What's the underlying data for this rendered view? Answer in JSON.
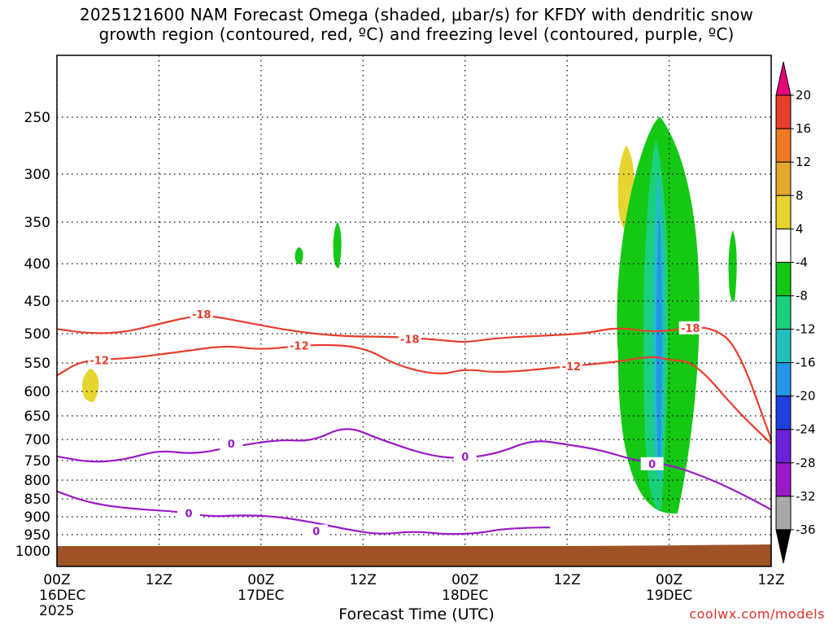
{
  "title_line1": "2025121600 NAM Forecast Omega (shaded, μbar/s) for KFDY with dendritic snow",
  "title_line2": "growth region (contoured, red, ºC) and freezing level (contoured, purple, ºC)",
  "credit": "coolwx.com/models",
  "chart_data": {
    "type": "heatmap",
    "title": "2025121600 NAM Forecast Omega (shaded, μbar/s) for KFDY with dendritic snow growth region (contoured, red, ºC) and freezing level (contoured, purple, ºC)",
    "xlabel": "Forecast Time (UTC)",
    "ylabel": "",
    "x_range_hours": [
      0,
      84
    ],
    "x_ticks": [
      {
        "h": 0,
        "label": "00Z",
        "sub": "16DEC",
        "sub2": "2025"
      },
      {
        "h": 12,
        "label": "12Z",
        "sub": "",
        "sub2": ""
      },
      {
        "h": 24,
        "label": "00Z",
        "sub": "17DEC",
        "sub2": ""
      },
      {
        "h": 36,
        "label": "12Z",
        "sub": "",
        "sub2": ""
      },
      {
        "h": 48,
        "label": "00Z",
        "sub": "18DEC",
        "sub2": ""
      },
      {
        "h": 60,
        "label": "12Z",
        "sub": "",
        "sub2": ""
      },
      {
        "h": 72,
        "label": "00Z",
        "sub": "19DEC",
        "sub2": ""
      },
      {
        "h": 84,
        "label": "12Z",
        "sub": "",
        "sub2": ""
      }
    ],
    "y_ticks": [
      250,
      300,
      350,
      400,
      450,
      500,
      550,
      600,
      650,
      700,
      750,
      800,
      850,
      900,
      950,
      1000
    ],
    "y_range_hpa": [
      200,
      1050
    ],
    "colorbar": {
      "labels": [
        20,
        16,
        12,
        8,
        4,
        -4,
        -8,
        -12,
        -16,
        -20,
        -24,
        -28,
        -32,
        -36
      ],
      "colors": [
        "#e8007a",
        "#e83d2c",
        "#f07a22",
        "#e4a82c",
        "#e8d430",
        "#ffffff",
        "#14c814",
        "#1ad07a",
        "#22bfbf",
        "#2396e8",
        "#1f3fe0",
        "#6a1fd8",
        "#9a19c8",
        "#a8a8a8",
        "#000000"
      ]
    },
    "dgz_labels": [
      "-18",
      "-12"
    ],
    "freezing_label": "0",
    "surface_pressure_hpa": [
      985,
      985,
      985,
      985,
      983,
      980
    ],
    "surface_times_h": [
      0,
      24,
      48,
      60,
      72,
      84
    ],
    "dgz_minus12": {
      "h": [
        0,
        3,
        8,
        15,
        20,
        24,
        30,
        36,
        40,
        45,
        48,
        52,
        60,
        66,
        70,
        72,
        75,
        80,
        84
      ],
      "p": [
        572,
        545,
        543,
        530,
        520,
        528,
        518,
        522,
        555,
        572,
        560,
        568,
        556,
        548,
        538,
        545,
        548,
        640,
        710
      ]
    },
    "dgz_minus18": {
      "h": [
        0,
        4,
        8,
        12,
        17,
        22,
        28,
        34,
        40,
        46,
        48,
        52,
        58,
        62,
        66,
        70,
        74,
        77,
        80,
        84
      ],
      "p": [
        493,
        500,
        498,
        485,
        470,
        482,
        497,
        505,
        505,
        512,
        515,
        507,
        503,
        500,
        490,
        498,
        492,
        490,
        520,
        700
      ]
    },
    "freezing_0_upper": {
      "h": [
        0,
        4,
        8,
        12,
        16,
        20,
        26,
        30,
        34,
        38,
        44,
        48,
        52,
        56,
        60,
        64,
        68,
        72,
        76,
        80,
        84
      ],
      "p": [
        740,
        755,
        748,
        725,
        735,
        720,
        700,
        705,
        670,
        700,
        740,
        745,
        732,
        700,
        712,
        725,
        750,
        760,
        790,
        830,
        880
      ]
    },
    "freezing_0_lower": {
      "h": [
        0,
        3,
        6,
        10,
        14,
        18,
        22,
        26,
        30,
        34,
        38,
        42,
        46,
        50,
        52,
        56,
        58
      ],
      "p": [
        830,
        855,
        870,
        880,
        885,
        900,
        895,
        900,
        915,
        935,
        950,
        940,
        950,
        945,
        935,
        930,
        930
      ]
    },
    "omega_regions": [
      {
        "label": "-8",
        "color": "#14c814",
        "h_range": [
          28,
          29
        ],
        "p_range": [
          380,
          400
        ]
      },
      {
        "label": "-8",
        "color": "#14c814",
        "h_range": [
          32.5,
          33.5
        ],
        "p_range": [
          350,
          405
        ]
      },
      {
        "label": "4",
        "color": "#e8d430",
        "h_range": [
          66,
          68
        ],
        "p_range": [
          275,
          360
        ]
      },
      {
        "label": "4",
        "color": "#e8d430",
        "h_range": [
          3,
          5
        ],
        "p_range": [
          560,
          620
        ]
      },
      {
        "label": "-8",
        "color": "#14c814",
        "h_range": [
          66,
          76
        ],
        "p_range": [
          250,
          890
        ]
      },
      {
        "label": "-12",
        "color": "#1ad07a",
        "h_range": [
          69,
          72
        ],
        "p_range": [
          270,
          880
        ]
      },
      {
        "label": "-16",
        "color": "#22bfbf",
        "h_range": [
          70,
          71.5
        ],
        "p_range": [
          300,
          800
        ]
      },
      {
        "label": "-20",
        "color": "#2396e8",
        "h_range": [
          70.5,
          71.2
        ],
        "p_range": [
          340,
          760
        ]
      },
      {
        "label": "-8",
        "color": "#14c814",
        "h_range": [
          79,
          80
        ],
        "p_range": [
          360,
          450
        ]
      }
    ]
  }
}
